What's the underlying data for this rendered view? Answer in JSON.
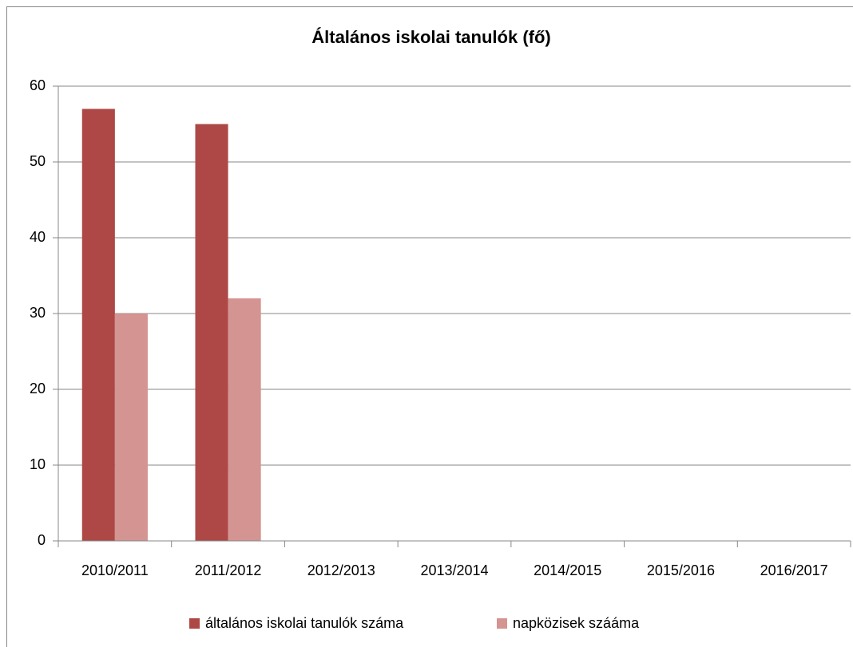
{
  "chart_data": {
    "type": "bar",
    "title": "Általános iskolai tanulók (fő)",
    "categories": [
      "2010/2011",
      "2011/2012",
      "2012/2013",
      "2013/2014",
      "2014/2015",
      "2015/2016",
      "2016/2017"
    ],
    "series": [
      {
        "name": "általános iskolai tanulók száma",
        "color": "#ad4846",
        "values": [
          57,
          55,
          null,
          null,
          null,
          null,
          null
        ]
      },
      {
        "name": "napközisek szááma",
        "color": "#d49492",
        "values": [
          30,
          32,
          null,
          null,
          null,
          null,
          null
        ]
      }
    ],
    "ylim": [
      0,
      60
    ],
    "yticks": [
      0,
      10,
      20,
      30,
      40,
      50,
      60
    ],
    "grid": true,
    "legend": "bottom"
  }
}
